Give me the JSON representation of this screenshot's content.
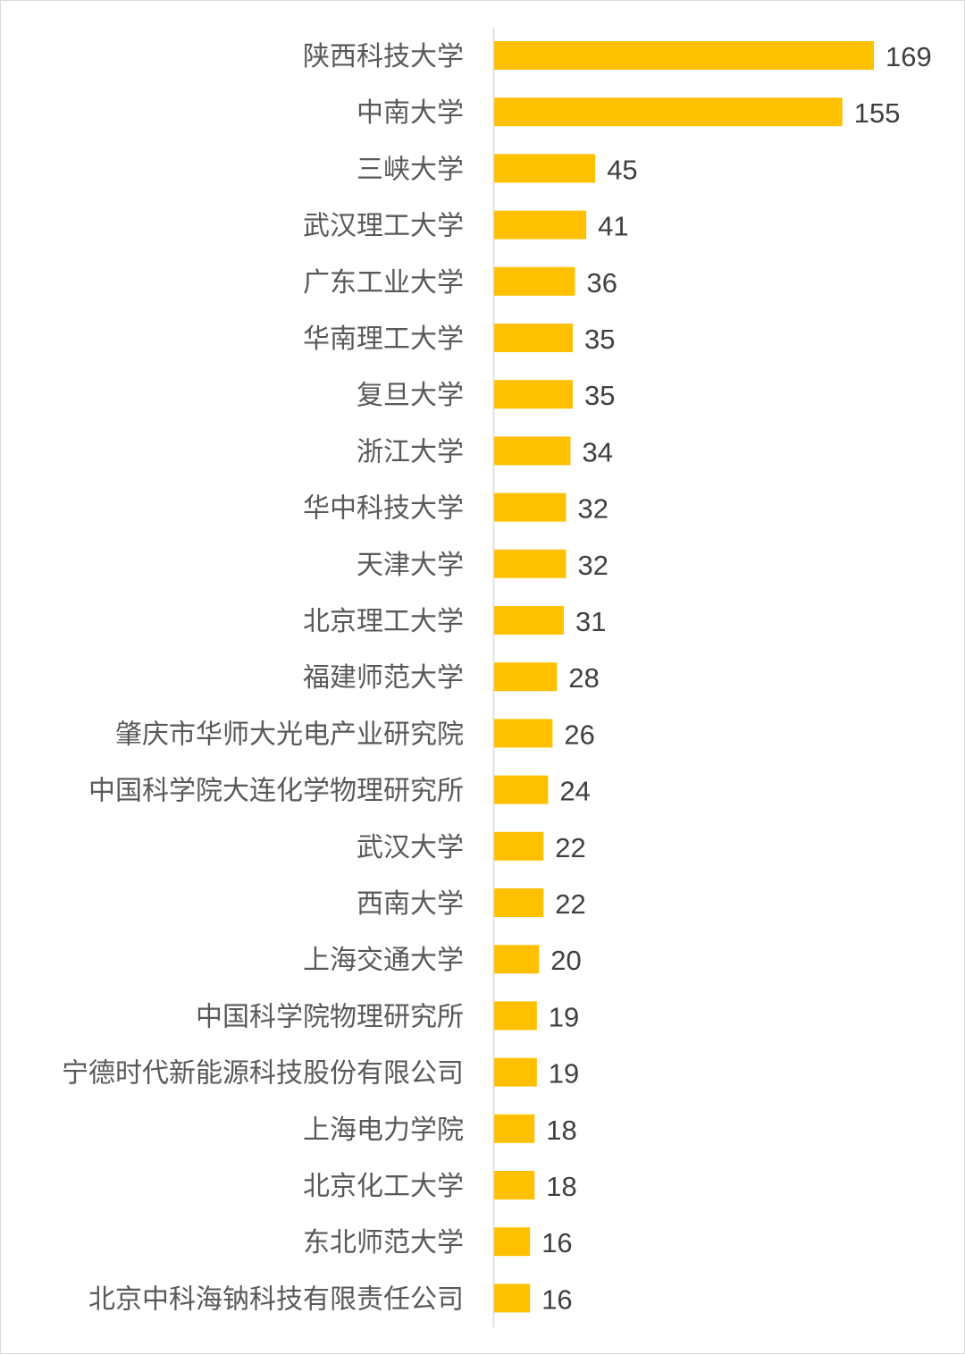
{
  "chart_data": {
    "type": "bar",
    "orientation": "horizontal",
    "title": "",
    "xlabel": "",
    "ylabel": "",
    "xlim": [
      0,
      169
    ],
    "grid": false,
    "legend": "none",
    "bar_color": "#FFC000",
    "axis_color": "#d9d9d9",
    "categories": [
      "陕西科技大学",
      "中南大学",
      "三峡大学",
      "武汉理工大学",
      "广东工业大学",
      "华南理工大学",
      "复旦大学",
      "浙江大学",
      "华中科技大学",
      "天津大学",
      "北京理工大学",
      "福建师范大学",
      "肇庆市华师大光电产业研究院",
      "中国科学院大连化学物理研究所",
      "武汉大学",
      "西南大学",
      "上海交通大学",
      "中国科学院物理研究所",
      "宁德时代新能源科技股份有限公司",
      "上海电力学院",
      "北京化工大学",
      "东北师范大学",
      "北京中科海钠科技有限责任公司"
    ],
    "values": [
      169,
      155,
      45,
      41,
      36,
      35,
      35,
      34,
      32,
      32,
      31,
      28,
      26,
      24,
      22,
      22,
      20,
      19,
      19,
      18,
      18,
      16,
      16
    ]
  }
}
